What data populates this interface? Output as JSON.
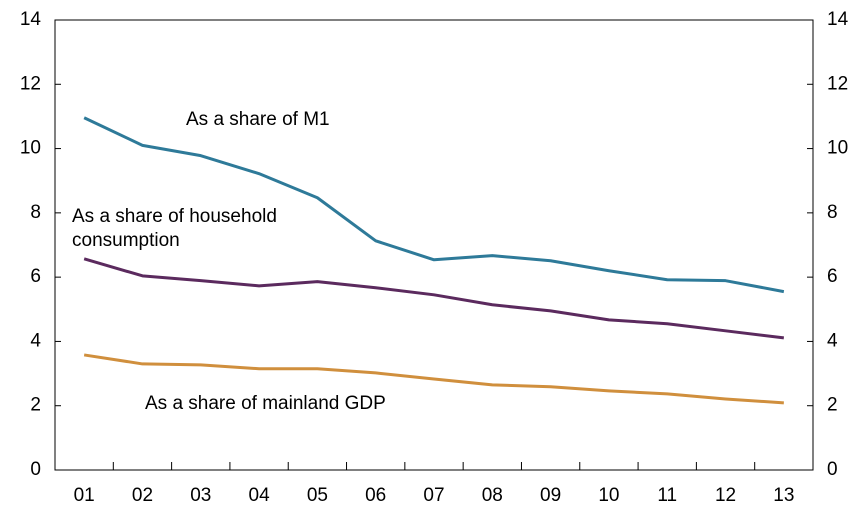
{
  "chart_data": {
    "type": "line",
    "categories": [
      "01",
      "02",
      "03",
      "04",
      "05",
      "06",
      "07",
      "08",
      "09",
      "10",
      "11",
      "12",
      "13"
    ],
    "series": [
      {
        "name": "As a share of M1",
        "color": "#2e7a99",
        "values": [
          10.96,
          10.1,
          9.78,
          9.22,
          8.47,
          7.13,
          6.54,
          6.67,
          6.51,
          6.2,
          5.92,
          5.89,
          5.55
        ]
      },
      {
        "name": "As a share of household consumption",
        "color": "#5b2a5e",
        "values": [
          6.57,
          6.04,
          5.89,
          5.73,
          5.86,
          5.67,
          5.45,
          5.14,
          4.95,
          4.67,
          4.55,
          4.33,
          4.11
        ]
      },
      {
        "name": "As a share of mainland GDP",
        "color": "#d08f3d",
        "values": [
          3.58,
          3.3,
          3.27,
          3.15,
          3.15,
          3.02,
          2.83,
          2.65,
          2.59,
          2.46,
          2.37,
          2.21,
          2.09
        ]
      }
    ],
    "ylim": [
      0,
      14
    ],
    "yticks": [
      0,
      2,
      4,
      6,
      8,
      10,
      12,
      14
    ],
    "y2lim": [
      0,
      14
    ],
    "y2ticks": [
      0,
      2,
      4,
      6,
      8,
      10,
      12,
      14
    ]
  }
}
